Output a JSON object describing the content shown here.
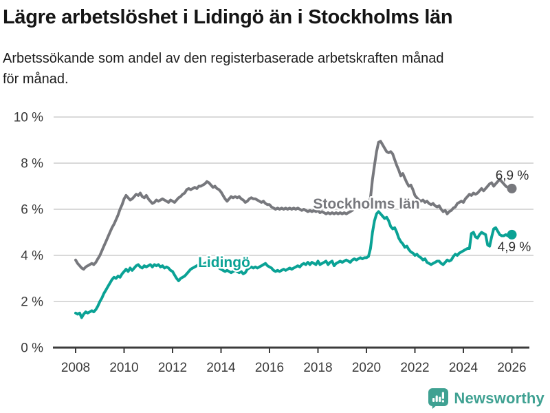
{
  "chart_data": {
    "type": "line",
    "title": "Lägre arbetslöshet i Lidingö än i Stockholms län",
    "subtitle_lines": [
      "Arbetssökande som andel av den registerbaserade arbetskraften månad",
      "för månad."
    ],
    "unit": "%",
    "frequency": "monthly",
    "grid": true,
    "x_axis": {
      "ticks": [
        2008,
        2010,
        2012,
        2014,
        2016,
        2018,
        2020,
        2022,
        2024,
        2026
      ],
      "tick_labels": [
        "2008",
        "2010",
        "2012",
        "2014",
        "2016",
        "2018",
        "2020",
        "2022",
        "2024",
        "2026"
      ],
      "range": [
        2007.1,
        2026.9
      ]
    },
    "y_axis": {
      "ticks": [
        0,
        2,
        4,
        6,
        8,
        10
      ],
      "tick_labels": [
        "0 %",
        "2 %",
        "4 %",
        "6 %",
        "8 %",
        "10 %"
      ],
      "range": [
        0,
        10
      ]
    },
    "series": [
      {
        "name": "Stockholms län",
        "color": "#77787D",
        "end_label": "6,9 %",
        "end_value": 6.9,
        "start_year": 2008,
        "points_per_year": 12,
        "values": [
          3.8,
          3.65,
          3.55,
          3.45,
          3.4,
          3.5,
          3.55,
          3.6,
          3.65,
          3.6,
          3.7,
          3.85,
          4.0,
          4.2,
          4.4,
          4.6,
          4.8,
          5.0,
          5.2,
          5.35,
          5.55,
          5.75,
          6.0,
          6.2,
          6.45,
          6.6,
          6.5,
          6.4,
          6.45,
          6.55,
          6.65,
          6.6,
          6.7,
          6.55,
          6.5,
          6.6,
          6.45,
          6.35,
          6.25,
          6.3,
          6.4,
          6.35,
          6.4,
          6.45,
          6.4,
          6.35,
          6.3,
          6.4,
          6.35,
          6.3,
          6.4,
          6.5,
          6.55,
          6.65,
          6.7,
          6.85,
          6.9,
          6.85,
          6.9,
          6.95,
          6.9,
          7.0,
          7.0,
          7.05,
          7.1,
          7.2,
          7.15,
          7.05,
          6.95,
          7.0,
          6.9,
          6.85,
          6.75,
          6.6,
          6.45,
          6.35,
          6.45,
          6.55,
          6.5,
          6.55,
          6.5,
          6.55,
          6.45,
          6.4,
          6.3,
          6.35,
          6.45,
          6.5,
          6.45,
          6.45,
          6.4,
          6.35,
          6.3,
          6.35,
          6.25,
          6.2,
          6.2,
          6.1,
          6.05,
          6.0,
          6.05,
          6.0,
          6.05,
          6.0,
          6.05,
          6.0,
          6.05,
          6.0,
          6.05,
          6.0,
          6.05,
          6.0,
          5.95,
          6.0,
          5.95,
          5.9,
          5.95,
          5.9,
          5.95,
          5.9,
          5.95,
          5.85,
          5.9,
          5.85,
          5.8,
          5.85,
          5.8,
          5.85,
          5.8,
          5.85,
          5.8,
          5.85,
          5.8,
          5.85,
          5.8,
          5.85,
          5.9,
          5.95,
          6.05,
          6.1,
          6.05,
          6.1,
          6.1,
          6.05,
          6.1,
          6.15,
          6.5,
          7.3,
          7.9,
          8.5,
          8.9,
          8.95,
          8.8,
          8.65,
          8.5,
          8.45,
          8.5,
          8.4,
          8.15,
          7.9,
          7.7,
          7.45,
          7.55,
          7.35,
          7.15,
          7.0,
          7.05,
          6.85,
          6.6,
          6.5,
          6.4,
          6.35,
          6.4,
          6.3,
          6.35,
          6.25,
          6.2,
          6.25,
          6.15,
          6.1,
          6.15,
          6.0,
          5.9,
          5.95,
          5.8,
          5.9,
          5.95,
          6.05,
          6.1,
          6.25,
          6.3,
          6.35,
          6.3,
          6.45,
          6.55,
          6.65,
          6.6,
          6.7,
          6.65,
          6.7,
          6.8,
          6.9,
          6.8,
          6.9,
          7.0,
          7.1,
          7.15,
          7.0,
          7.1,
          7.2,
          7.3,
          7.2,
          7.1,
          7.0,
          6.95,
          6.85,
          6.9
        ]
      },
      {
        "name": "Lidingö",
        "color": "#0AA295",
        "end_label": "4,9 %",
        "end_value": 4.9,
        "start_year": 2008,
        "points_per_year": 12,
        "values": [
          1.5,
          1.45,
          1.5,
          1.3,
          1.45,
          1.55,
          1.5,
          1.55,
          1.6,
          1.55,
          1.65,
          1.8,
          2.0,
          2.15,
          2.35,
          2.5,
          2.65,
          2.8,
          2.95,
          3.05,
          3.0,
          3.1,
          3.05,
          3.2,
          3.3,
          3.4,
          3.3,
          3.45,
          3.35,
          3.45,
          3.55,
          3.6,
          3.5,
          3.45,
          3.55,
          3.5,
          3.55,
          3.6,
          3.5,
          3.6,
          3.55,
          3.6,
          3.5,
          3.55,
          3.45,
          3.5,
          3.45,
          3.35,
          3.3,
          3.15,
          3.0,
          2.9,
          3.0,
          3.05,
          3.1,
          3.2,
          3.3,
          3.4,
          3.45,
          3.5,
          3.55,
          3.6,
          3.65,
          3.6,
          3.65,
          3.7,
          3.65,
          3.6,
          3.55,
          3.5,
          3.55,
          3.45,
          3.4,
          3.35,
          3.3,
          3.35,
          3.3,
          3.25,
          3.3,
          3.35,
          3.3,
          3.25,
          3.3,
          3.2,
          3.25,
          3.4,
          3.45,
          3.5,
          3.45,
          3.5,
          3.45,
          3.5,
          3.55,
          3.6,
          3.65,
          3.55,
          3.5,
          3.45,
          3.35,
          3.3,
          3.35,
          3.3,
          3.35,
          3.4,
          3.35,
          3.4,
          3.45,
          3.4,
          3.45,
          3.5,
          3.55,
          3.5,
          3.6,
          3.65,
          3.6,
          3.7,
          3.6,
          3.7,
          3.65,
          3.6,
          3.75,
          3.6,
          3.65,
          3.7,
          3.75,
          3.6,
          3.7,
          3.75,
          3.55,
          3.65,
          3.7,
          3.75,
          3.7,
          3.75,
          3.8,
          3.75,
          3.7,
          3.8,
          3.85,
          3.8,
          3.85,
          3.9,
          3.85,
          3.9,
          3.9,
          3.95,
          4.3,
          5.0,
          5.5,
          5.8,
          5.9,
          5.8,
          5.7,
          5.6,
          5.65,
          5.5,
          5.25,
          5.15,
          5.2,
          5.0,
          4.75,
          4.6,
          4.5,
          4.35,
          4.4,
          4.25,
          4.15,
          4.1,
          4.0,
          4.05,
          3.95,
          3.9,
          3.8,
          3.85,
          3.7,
          3.65,
          3.6,
          3.65,
          3.7,
          3.75,
          3.75,
          3.65,
          3.6,
          3.7,
          3.8,
          3.75,
          3.8,
          3.95,
          4.05,
          4.0,
          4.1,
          4.15,
          4.2,
          4.25,
          4.3,
          4.3,
          4.95,
          5.0,
          4.8,
          4.75,
          4.9,
          5.0,
          4.95,
          4.9,
          4.45,
          4.4,
          4.8,
          5.15,
          5.2,
          5.05,
          4.9,
          4.85,
          4.85,
          4.9,
          4.85,
          4.9,
          4.9
        ]
      }
    ],
    "colors": {
      "grid": "#D9D9D9",
      "axis": "#3B3B3B",
      "axis_text": "#3B3B3B",
      "end_label_text": "#2E2E2E"
    }
  },
  "footer": {
    "brand": "Newsworthy",
    "brand_color": "#3FA192"
  }
}
